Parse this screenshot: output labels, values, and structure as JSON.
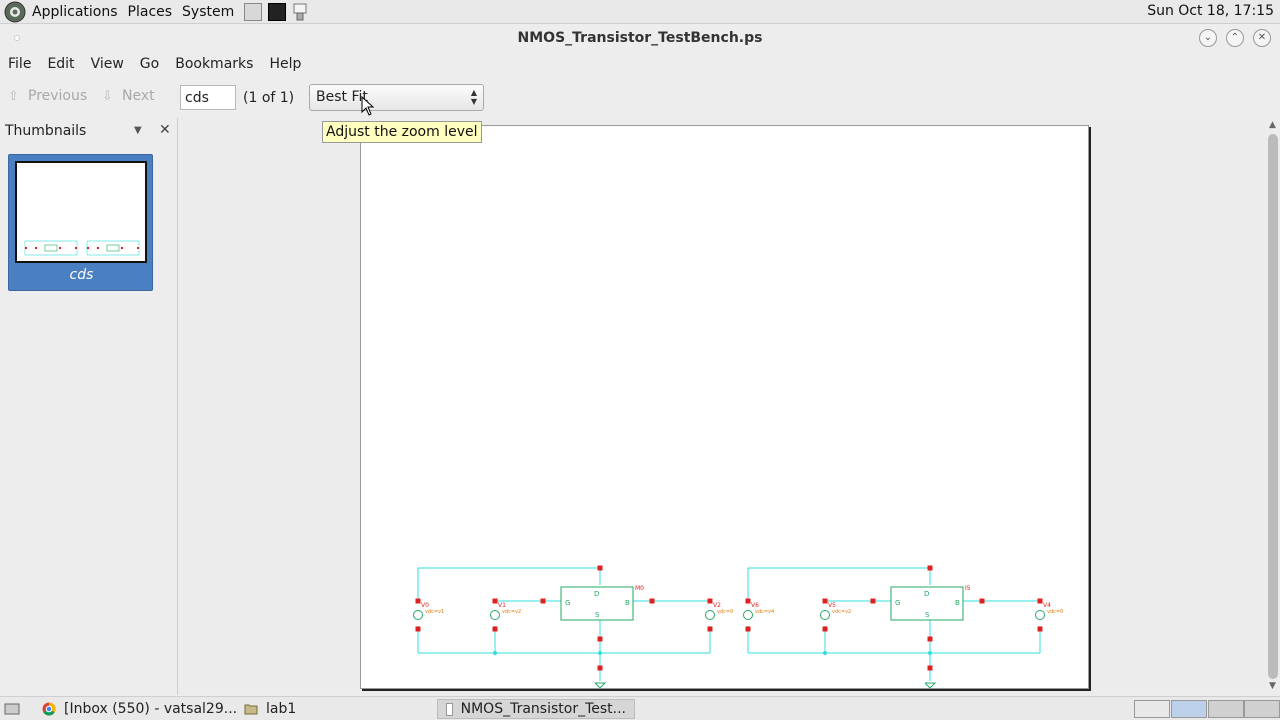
{
  "top_panel": {
    "menus": [
      "Applications",
      "Places",
      "System"
    ],
    "clock": "Sun Oct 18, 17:15"
  },
  "window": {
    "title": "NMOS_Transistor_TestBench.ps"
  },
  "menubar": [
    "File",
    "Edit",
    "View",
    "Go",
    "Bookmarks",
    "Help"
  ],
  "toolbar": {
    "previous_label": "Previous",
    "next_label": "Next",
    "page_value": "cds",
    "page_count": "(1 of 1)",
    "zoom_value": "Best Fit"
  },
  "tooltip": "Adjust the zoom level",
  "sidebar": {
    "title": "Thumbnails",
    "thumbnail_label": "cds"
  },
  "schematic": {
    "wire_color": "#33dddd",
    "pin_color": "#e02020",
    "device_color": "#22aa66",
    "label_color": "#e07a10",
    "circuits": [
      {
        "sources": [
          "V0",
          "V1",
          "V2"
        ],
        "source_params": [
          "vdc=v1",
          "vdc=v2",
          "vdc=0"
        ],
        "device": "M0"
      },
      {
        "sources": [
          "V6",
          "V5",
          "V4"
        ],
        "source_params": [
          "vdc=v4",
          "vdc=v2",
          "vdc=0"
        ],
        "device": "I5"
      }
    ],
    "terminals": [
      "D",
      "G",
      "S",
      "B"
    ]
  },
  "taskbar": {
    "tasks": [
      "[Inbox (550) - vatsal29...",
      "lab1",
      "NMOS_Transistor_Test..."
    ]
  }
}
